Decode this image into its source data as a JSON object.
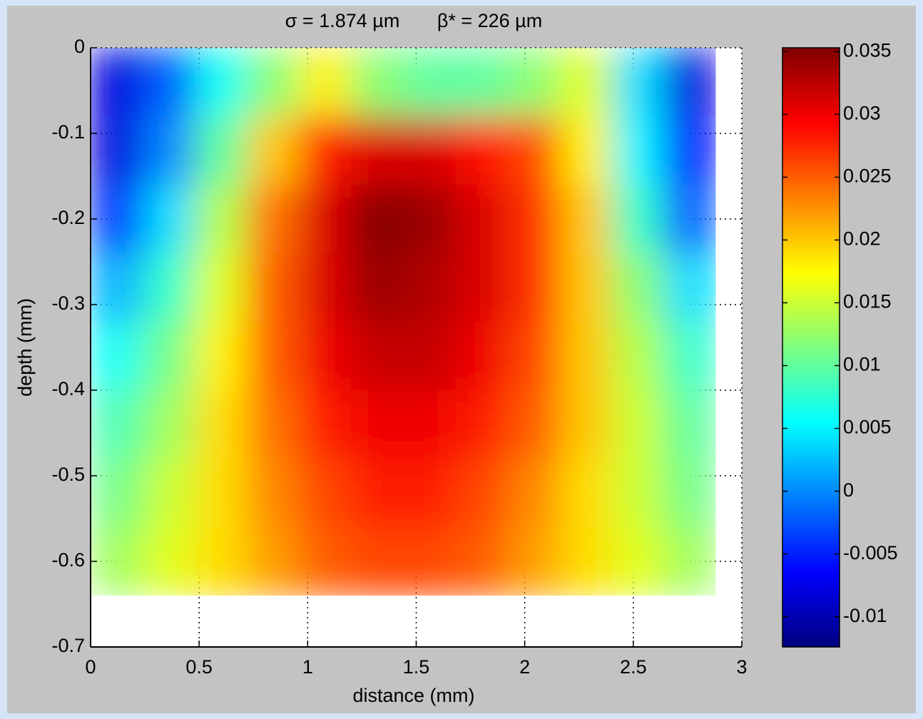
{
  "chart_data": {
    "type": "heatmap",
    "title": "σ = 1.874 µm       β* = 226 µm",
    "x_label": "distance (mm)",
    "y_label": "depth (mm)",
    "x": [
      0.12,
      0.36,
      0.6,
      0.84,
      1.08,
      1.32,
      1.56,
      1.8,
      2.04,
      2.28,
      2.52,
      2.76
    ],
    "y": [
      -0.04,
      -0.12,
      -0.2,
      -0.28,
      -0.36,
      -0.44,
      -0.52,
      -0.6
    ],
    "z": [
      [
        -0.008,
        -0.002,
        0.006,
        0.012,
        0.018,
        0.012,
        0.01,
        0.01,
        0.012,
        0.016,
        0.004,
        -0.008
      ],
      [
        -0.008,
        0.0,
        0.01,
        0.02,
        0.028,
        0.031,
        0.031,
        0.029,
        0.026,
        0.018,
        0.005,
        -0.006
      ],
      [
        -0.004,
        0.004,
        0.014,
        0.024,
        0.031,
        0.035,
        0.034,
        0.031,
        0.027,
        0.02,
        0.008,
        -0.002
      ],
      [
        0.002,
        0.008,
        0.016,
        0.025,
        0.031,
        0.034,
        0.033,
        0.031,
        0.027,
        0.02,
        0.012,
        0.004
      ],
      [
        0.006,
        0.011,
        0.018,
        0.025,
        0.03,
        0.032,
        0.032,
        0.03,
        0.026,
        0.02,
        0.014,
        0.008
      ],
      [
        0.009,
        0.013,
        0.019,
        0.024,
        0.028,
        0.03,
        0.03,
        0.028,
        0.025,
        0.02,
        0.015,
        0.01
      ],
      [
        0.011,
        0.015,
        0.019,
        0.023,
        0.026,
        0.028,
        0.028,
        0.026,
        0.023,
        0.019,
        0.015,
        0.011
      ],
      [
        0.013,
        0.016,
        0.019,
        0.022,
        0.025,
        0.026,
        0.026,
        0.025,
        0.022,
        0.019,
        0.016,
        0.013
      ]
    ],
    "colormap": "jet",
    "xlim": [
      0,
      3
    ],
    "xticks": [
      0,
      0.5,
      1,
      1.5,
      2,
      2.5,
      3
    ],
    "ylim": [
      -0.7,
      0
    ],
    "yticks": [
      0,
      -0.1,
      -0.2,
      -0.3,
      -0.4,
      -0.5,
      -0.6,
      -0.7
    ],
    "clim": [
      -0.0124,
      0.0353
    ],
    "cticks": [
      0.035,
      0.03,
      0.025,
      0.02,
      0.015,
      0.01,
      0.005,
      0,
      -0.005,
      -0.01
    ],
    "grid": true
  }
}
